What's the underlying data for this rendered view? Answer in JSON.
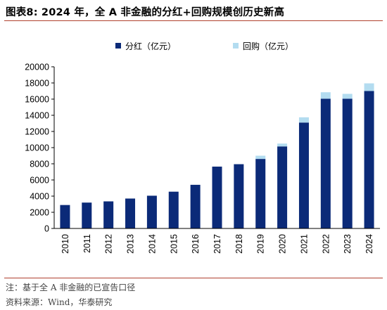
{
  "header": {
    "title": "图表8:  2024 年，全 A 非金融的分红+回购规模创历史新高"
  },
  "footer": {
    "note": "注：基于全 A 非金融的已宣告口径",
    "source": "资料来源：Wind，华泰研究"
  },
  "colors": {
    "dividend": "#0b2a78",
    "buyback": "#b3dcf0",
    "rule": "#b0402e"
  },
  "chart_data": {
    "type": "bar",
    "stacked": true,
    "categories": [
      "2010",
      "2011",
      "2012",
      "2013",
      "2014",
      "2015",
      "2016",
      "2017",
      "2018",
      "2019",
      "2020",
      "2021",
      "2022",
      "2023",
      "2024"
    ],
    "series": [
      {
        "name": "分红（亿元）",
        "values": [
          2900,
          3200,
          3350,
          3700,
          4050,
          4550,
          5400,
          7650,
          7950,
          8600,
          10150,
          13100,
          16050,
          16050,
          17000
        ]
      },
      {
        "name": "回购（亿元）",
        "values": [
          0,
          0,
          0,
          0,
          0,
          0,
          0,
          0,
          0,
          400,
          350,
          650,
          800,
          600,
          950
        ]
      }
    ],
    "ylim": [
      0,
      20000
    ],
    "yticks": [
      0,
      2000,
      4000,
      6000,
      8000,
      10000,
      12000,
      14000,
      16000,
      18000,
      20000
    ],
    "legend_position": "top-right",
    "grid": false,
    "xlabel_rotation": -90
  }
}
